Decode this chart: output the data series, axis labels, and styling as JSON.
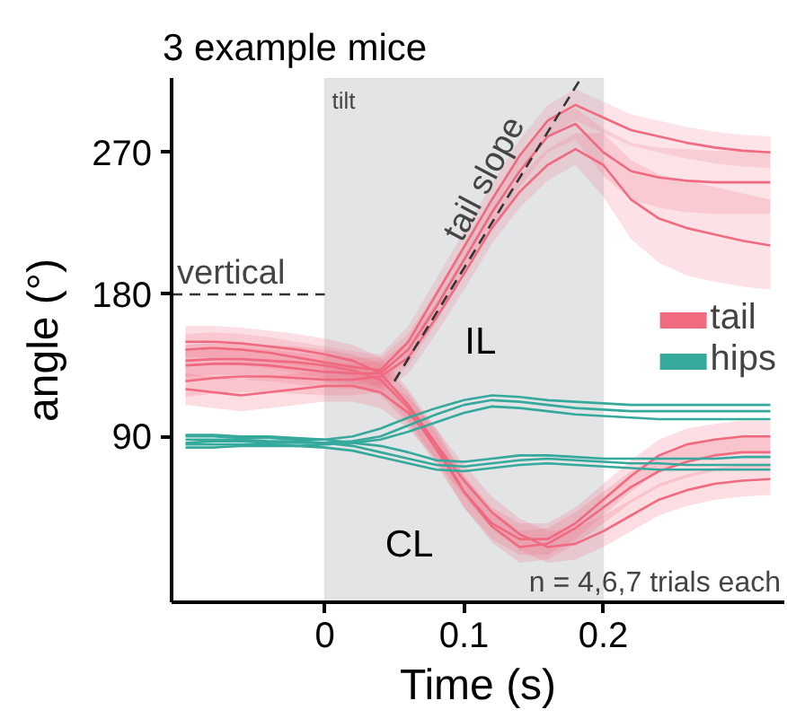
{
  "chart_data": {
    "type": "line",
    "title": "3 example mice",
    "xlabel": "Time (s)",
    "ylabel": "angle (°)",
    "x": [
      -0.1,
      -0.08,
      -0.06,
      -0.04,
      -0.02,
      0,
      0.02,
      0.04,
      0.06,
      0.08,
      0.1,
      0.12,
      0.14,
      0.16,
      0.18,
      0.2,
      0.22,
      0.24,
      0.26,
      0.28,
      0.3,
      0.32
    ],
    "xlim": [
      -0.11,
      0.33
    ],
    "xticks": [
      0,
      0.1,
      0.2
    ],
    "ylim": [
      -15,
      317
    ],
    "yticks": [
      90,
      180,
      270
    ],
    "grid": false,
    "legend": "right",
    "marker": "none",
    "line_style": "solid",
    "series": [
      {
        "name": "tail",
        "color": "#f06a80",
        "values": [
          145,
          146,
          145,
          143,
          140,
          137,
          134,
          132,
          150,
          180,
          210,
          240,
          268,
          290,
          300,
          292,
          284,
          280,
          276,
          273,
          271,
          270
        ],
        "lower": [
          135,
          136,
          135,
          133,
          130,
          127,
          124,
          122,
          140,
          170,
          200,
          230,
          258,
          280,
          290,
          282,
          274,
          270,
          266,
          263,
          261,
          260
        ],
        "upper": [
          155,
          156,
          155,
          153,
          150,
          147,
          144,
          142,
          160,
          190,
          220,
          250,
          278,
          300,
          310,
          302,
          294,
          290,
          286,
          283,
          281,
          280
        ]
      },
      {
        "color": "#ef6a80",
        "values": [
          135,
          136,
          136,
          135,
          133,
          131,
          130,
          130,
          145,
          172,
          202,
          232,
          258,
          280,
          288,
          270,
          258,
          254,
          252,
          251,
          251,
          251
        ],
        "lower": [
          125,
          126,
          126,
          125,
          123,
          121,
          120,
          120,
          135,
          162,
          192,
          222,
          248,
          270,
          278,
          255,
          240,
          235,
          232,
          231,
          231,
          231
        ],
        "upper": [
          145,
          146,
          146,
          145,
          143,
          141,
          140,
          140,
          155,
          182,
          212,
          242,
          268,
          290,
          298,
          285,
          276,
          273,
          272,
          271,
          271,
          271
        ]
      },
      {
        "color": "#f06b80",
        "values": [
          125,
          127,
          128,
          128,
          127,
          126,
          126,
          128,
          140,
          165,
          193,
          222,
          245,
          262,
          272,
          262,
          240,
          228,
          222,
          218,
          214,
          211
        ],
        "lower": [
          115,
          117,
          118,
          118,
          117,
          116,
          116,
          118,
          130,
          155,
          183,
          212,
          235,
          252,
          262,
          242,
          215,
          200,
          192,
          188,
          185,
          183
        ],
        "upper": [
          135,
          137,
          138,
          138,
          137,
          136,
          136,
          138,
          150,
          175,
          203,
          232,
          255,
          272,
          282,
          282,
          265,
          256,
          252,
          248,
          244,
          240
        ]
      },
      {
        "color": "#f0697f",
        "values": [
          150,
          150,
          149,
          147,
          145,
          142,
          138,
          130,
          110,
          85,
          55,
          35,
          25,
          25,
          35,
          50,
          65,
          78,
          85,
          88,
          90,
          90
        ],
        "lower": [
          140,
          140,
          139,
          137,
          135,
          132,
          128,
          120,
          100,
          75,
          45,
          25,
          15,
          15,
          25,
          40,
          55,
          68,
          75,
          78,
          80,
          80
        ],
        "upper": [
          160,
          160,
          159,
          157,
          155,
          152,
          148,
          140,
          120,
          95,
          65,
          45,
          35,
          35,
          45,
          60,
          75,
          88,
          95,
          98,
          100,
          100
        ]
      },
      {
        "color": "#ef6b81",
        "values": [
          138,
          139,
          139,
          138,
          137,
          135,
          132,
          126,
          108,
          82,
          55,
          33,
          20,
          22,
          32,
          45,
          58,
          68,
          74,
          78,
          80,
          80
        ],
        "lower": [
          128,
          129,
          129,
          128,
          127,
          125,
          122,
          116,
          98,
          72,
          45,
          23,
          10,
          12,
          22,
          35,
          48,
          58,
          64,
          68,
          70,
          70
        ],
        "upper": [
          148,
          149,
          149,
          148,
          147,
          145,
          142,
          136,
          118,
          92,
          65,
          43,
          30,
          32,
          42,
          55,
          68,
          78,
          84,
          88,
          90,
          90
        ]
      },
      {
        "color": "#f16a80",
        "values": [
          120,
          118,
          116,
          118,
          120,
          122,
          122,
          118,
          105,
          85,
          62,
          42,
          28,
          20,
          22,
          30,
          40,
          50,
          56,
          60,
          62,
          63
        ],
        "lower": [
          110,
          108,
          106,
          108,
          110,
          112,
          112,
          108,
          95,
          75,
          52,
          32,
          18,
          10,
          12,
          20,
          30,
          40,
          46,
          50,
          52,
          53
        ],
        "upper": [
          130,
          128,
          126,
          128,
          130,
          132,
          132,
          128,
          115,
          95,
          72,
          52,
          38,
          30,
          32,
          40,
          50,
          60,
          66,
          70,
          72,
          73
        ]
      },
      {
        "name": "hips",
        "color": "#35a99c",
        "values": [
          90,
          90,
          89,
          89,
          88,
          88,
          90,
          95,
          102,
          108,
          113,
          116,
          115,
          113,
          112,
          111,
          110,
          110,
          110,
          110,
          110,
          110
        ]
      },
      {
        "color": "#35a99c",
        "values": [
          86,
          87,
          87,
          86,
          86,
          86,
          87,
          90,
          97,
          104,
          110,
          113,
          112,
          110,
          108,
          107,
          106,
          106,
          106,
          106,
          106,
          106
        ]
      },
      {
        "color": "#35a99c",
        "values": [
          83,
          83,
          84,
          84,
          84,
          85,
          86,
          88,
          93,
          99,
          105,
          109,
          108,
          106,
          104,
          103,
          102,
          101,
          101,
          101,
          101,
          101
        ]
      },
      {
        "color": "#35a99c",
        "values": [
          91,
          91,
          90,
          90,
          89,
          88,
          86,
          84,
          80,
          75,
          74,
          76,
          78,
          78,
          77,
          76,
          76,
          76,
          76,
          76,
          77,
          77
        ]
      },
      {
        "color": "#35a99c",
        "values": [
          88,
          88,
          88,
          87,
          87,
          86,
          84,
          80,
          76,
          72,
          71,
          73,
          75,
          76,
          75,
          74,
          73,
          73,
          72,
          72,
          72,
          72
        ]
      },
      {
        "color": "#35a99c",
        "values": [
          85,
          85,
          85,
          85,
          84,
          83,
          81,
          77,
          73,
          69,
          68,
          70,
          72,
          73,
          72,
          71,
          70,
          69,
          69,
          69,
          69,
          69
        ]
      },
      {
        "type": "line",
        "color": "#333333",
        "line_style": "dashed",
        "x": [
          0.05,
          0.184
        ],
        "values": [
          125,
          317
        ]
      }
    ],
    "ref_lines": [
      {
        "axis": "y",
        "value": 180,
        "label": "vertical",
        "line_style": "dashed",
        "color": "#333333"
      }
    ],
    "bands": [
      {
        "axis": "x",
        "from": 0,
        "to": 0.2,
        "label": "tilt",
        "color": "#e3e4e6"
      }
    ],
    "annotations": [
      {
        "text": "tail slope",
        "x": 0.115,
        "y": 253
      },
      "IL",
      "CL",
      "n = 4,6,7 trials each"
    ]
  }
}
